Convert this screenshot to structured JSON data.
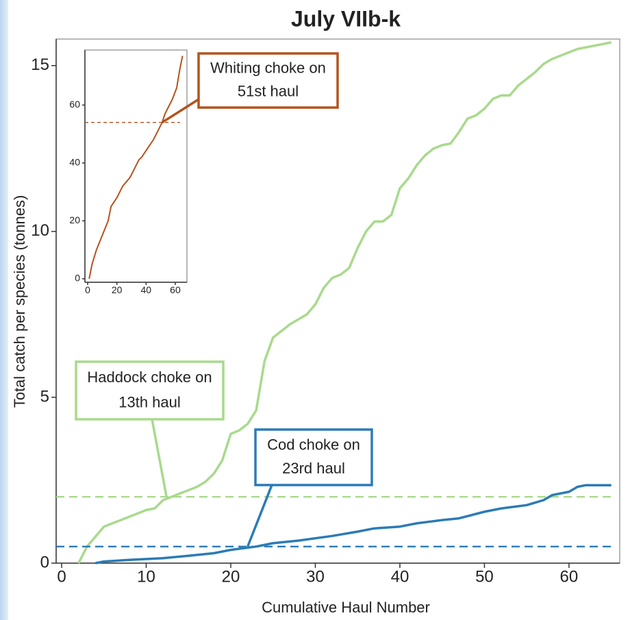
{
  "chart_data": [
    {
      "type": "line",
      "title": "July VIIb-k",
      "xlabel": "Cumulative Haul Number",
      "ylabel": "Total catch per species (tonnes)",
      "xlim": [
        -0.65,
        66
      ],
      "ylim": [
        0,
        15.8
      ],
      "xticks": [
        0,
        10,
        20,
        30,
        40,
        50,
        60
      ],
      "yticks": [
        0,
        5,
        10,
        15
      ],
      "series": [
        {
          "color": "#a8da8c",
          "x": [
            2,
            3,
            4,
            5,
            6,
            7,
            8,
            9,
            10,
            11,
            12,
            13,
            14,
            15,
            16,
            17,
            18,
            19,
            20,
            21,
            22,
            23,
            24,
            25,
            26,
            27,
            28,
            29,
            30,
            31,
            32,
            33,
            34,
            35,
            36,
            37,
            38,
            39,
            40,
            41,
            42,
            43,
            44,
            45,
            46,
            47,
            48,
            49,
            50,
            51,
            52,
            53,
            54,
            55,
            56,
            57,
            58,
            59,
            60,
            61,
            62,
            63,
            64,
            65
          ],
          "values": [
            0,
            0.5,
            0.8,
            1.1,
            1.2,
            1.3,
            1.4,
            1.5,
            1.6,
            1.65,
            1.9,
            2.0,
            2.1,
            2.2,
            2.3,
            2.45,
            2.7,
            3.1,
            3.9,
            4.0,
            4.2,
            4.6,
            6.1,
            6.8,
            7.0,
            7.2,
            7.35,
            7.5,
            7.8,
            8.3,
            8.6,
            8.7,
            8.9,
            9.5,
            10.0,
            10.3,
            10.3,
            10.5,
            11.3,
            11.6,
            12.0,
            12.3,
            12.5,
            12.6,
            12.65,
            13.0,
            13.4,
            13.5,
            13.7,
            14.0,
            14.1,
            14.1,
            14.4,
            14.6,
            14.8,
            15.05,
            15.2,
            15.3,
            15.4,
            15.5,
            15.55,
            15.6,
            15.65,
            15.7
          ],
          "threshold": 2.0
        },
        {
          "color": "#2b7bb6",
          "x": [
            4,
            5,
            8,
            12,
            15,
            18,
            20,
            23,
            25,
            28,
            30,
            32,
            35,
            37,
            40,
            42,
            45,
            47,
            50,
            52,
            55,
            57,
            58,
            60,
            61,
            62,
            65
          ],
          "values": [
            0,
            0.05,
            0.1,
            0.15,
            0.22,
            0.3,
            0.4,
            0.5,
            0.6,
            0.68,
            0.75,
            0.82,
            0.95,
            1.05,
            1.1,
            1.2,
            1.3,
            1.35,
            1.55,
            1.65,
            1.75,
            1.9,
            2.05,
            2.15,
            2.3,
            2.35,
            2.35
          ],
          "threshold": 0.5
        }
      ],
      "annotations": [
        {
          "lines": [
            "Haddock choke on",
            "13th haul"
          ],
          "x": 12.4,
          "y": 2.0,
          "color": "#a8da8c"
        },
        {
          "lines": [
            "Cod choke on",
            "23rd haul"
          ],
          "x": 22,
          "y": 0.5,
          "color": "#2b7bb6"
        }
      ]
    },
    {
      "type": "line",
      "xlim": [
        -1.9,
        68
      ],
      "ylim": [
        -1.2,
        79
      ],
      "xticks": [
        0,
        20,
        40,
        60
      ],
      "yticks": [
        0,
        20,
        40,
        60
      ],
      "series": [
        {
          "color": "#b5521c",
          "x": [
            1,
            3,
            6,
            10,
            14,
            16,
            20,
            24,
            29,
            32,
            35,
            37,
            41,
            45,
            48,
            51,
            53,
            55,
            58,
            61,
            63,
            65
          ],
          "values": [
            0,
            5,
            10,
            15,
            20,
            25,
            28,
            32,
            35,
            38,
            41,
            42,
            45,
            48,
            51,
            54,
            57,
            59,
            62,
            66,
            72,
            77
          ],
          "threshold": 54
        }
      ],
      "annotations": [
        {
          "lines": [
            "Whiting choke on",
            "51st haul"
          ],
          "x": 51,
          "y": 54,
          "color": "#b5521c"
        }
      ]
    }
  ]
}
